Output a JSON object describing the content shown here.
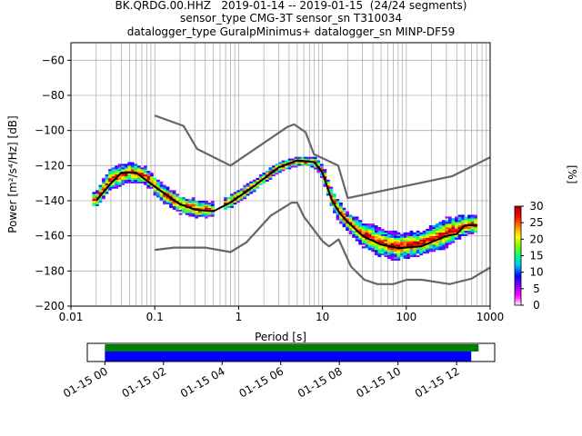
{
  "title_lines": [
    "BK.QRDG.00.HHZ   2019-01-14 -- 2019-01-15  (24/24 segments)",
    "sensor_type CMG-3T sensor_sn T310034",
    "datalogger_type GuralpMinimus+ datalogger_sn MINP-DF59"
  ],
  "chart_data": [
    {
      "type": "heatmap",
      "title": "BK.QRDG.00.HHZ   2019-01-14 -- 2019-01-15  (24/24 segments)",
      "xlabel": "Period [s]",
      "ylabel": "Power [m²/s⁴/Hz] [dB]",
      "xscale": "log",
      "xlim": [
        0.01,
        1000
      ],
      "ylim": [
        -200,
        -50
      ],
      "xticks": [
        0.01,
        0.1,
        1,
        10,
        100,
        1000
      ],
      "xtick_labels": [
        "0.01",
        "0.1",
        "1",
        "10",
        "100",
        "1000"
      ],
      "yticks": [
        -200,
        -180,
        -160,
        -140,
        -120,
        -100,
        -80,
        -60
      ],
      "ytick_labels": [
        "−200",
        "−180",
        "−160",
        "−140",
        "−120",
        "−100",
        "−80",
        "−60"
      ],
      "grid": true,
      "colorbar": {
        "label": "[%]",
        "range": [
          0,
          30
        ],
        "ticks": [
          0,
          5,
          10,
          15,
          20,
          25,
          30
        ],
        "colormap": [
          "#ffffff",
          "#ff00ff",
          "#8000ff",
          "#0000ff",
          "#00c0ff",
          "#00ff80",
          "#80ff00",
          "#ffff00",
          "#ff8000",
          "#ff0000",
          "#a00000"
        ]
      },
      "series": [
        {
          "name": "",
          "role": "mean",
          "color": "#000000",
          "points": [
            [
              0.02,
              -140
            ],
            [
              0.03,
              -130
            ],
            [
              0.04,
              -124
            ],
            [
              0.06,
              -124
            ],
            [
              0.1,
              -132
            ],
            [
              0.2,
              -142
            ],
            [
              0.3,
              -145
            ],
            [
              0.5,
              -146
            ],
            [
              0.8,
              -141
            ],
            [
              1.5,
              -132
            ],
            [
              3,
              -121
            ],
            [
              5,
              -117
            ],
            [
              8,
              -118
            ],
            [
              10,
              -124
            ],
            [
              13,
              -140
            ],
            [
              16,
              -147
            ],
            [
              20,
              -152
            ],
            [
              30,
              -160
            ],
            [
              50,
              -165
            ],
            [
              80,
              -167
            ],
            [
              150,
              -166
            ],
            [
              300,
              -160
            ],
            [
              400,
              -159
            ],
            [
              500,
              -154
            ],
            [
              700,
              -154
            ]
          ]
        },
        {
          "name": "",
          "role": "noise-model-high",
          "color": "#666666",
          "points": [
            [
              0.1,
              -91.5
            ],
            [
              0.22,
              -97.4
            ],
            [
              0.32,
              -110.5
            ],
            [
              0.8,
              -120
            ],
            [
              3.8,
              -98
            ],
            [
              4.6,
              -96.5
            ],
            [
              6.3,
              -101
            ],
            [
              7.9,
              -113.5
            ],
            [
              15.4,
              -120
            ],
            [
              20,
              -138.5
            ],
            [
              354.8,
              -126
            ],
            [
              10000,
              -91.5
            ]
          ]
        },
        {
          "name": "",
          "role": "noise-model-low",
          "color": "#666666",
          "points": [
            [
              0.1,
              -168
            ],
            [
              0.17,
              -166.7
            ],
            [
              0.4,
              -166.7
            ],
            [
              0.8,
              -169.2
            ],
            [
              1.24,
              -163.7
            ],
            [
              2.4,
              -148.6
            ],
            [
              4.3,
              -141.1
            ],
            [
              5,
              -141.1
            ],
            [
              6,
              -149
            ],
            [
              10,
              -163
            ],
            [
              12,
              -166
            ],
            [
              15.6,
              -162
            ],
            [
              21.9,
              -177.5
            ],
            [
              31.6,
              -185
            ],
            [
              45,
              -187.5
            ],
            [
              70,
              -187.5
            ],
            [
              101,
              -185
            ],
            [
              154,
              -185
            ],
            [
              328,
              -187.5
            ],
            [
              600,
              -184.4
            ],
            [
              1000,
              -178
            ]
          ]
        }
      ],
      "density_band": {
        "period_range": [
          0.018,
          700
        ],
        "period_gap": [
          0.5,
          0.65
        ],
        "rows": [
          [
            0.02,
            -144,
            -135
          ],
          [
            0.03,
            -134,
            -121
          ],
          [
            0.05,
            -129,
            -118
          ],
          [
            0.08,
            -131,
            -121
          ],
          [
            0.12,
            -140,
            -130
          ],
          [
            0.2,
            -147,
            -137
          ],
          [
            0.35,
            -150,
            -140
          ],
          [
            0.5,
            -149,
            -141
          ],
          [
            0.8,
            -144,
            -137
          ],
          [
            1.5,
            -135,
            -128
          ],
          [
            3,
            -124,
            -118
          ],
          [
            5,
            -120,
            -115
          ],
          [
            8,
            -121,
            -115
          ],
          [
            10,
            -127,
            -119
          ],
          [
            13,
            -145,
            -133
          ],
          [
            16,
            -152,
            -140
          ],
          [
            20,
            -157,
            -147
          ],
          [
            30,
            -166,
            -151
          ],
          [
            50,
            -172,
            -156
          ],
          [
            80,
            -174,
            -158
          ],
          [
            150,
            -171,
            -157
          ],
          [
            300,
            -167,
            -150
          ],
          [
            500,
            -160,
            -148
          ],
          [
            700,
            -159,
            -148
          ]
        ]
      }
    },
    {
      "type": "timeline",
      "xtick_labels": [
        "01-15 00",
        "01-15 02",
        "01-15 04",
        "01-15 06",
        "01-15 08",
        "01-15 10",
        "01-15 12"
      ],
      "xticks_hours": [
        0,
        2,
        4,
        6,
        8,
        10,
        12
      ],
      "xlim_hours": [
        -0.6,
        13.3
      ],
      "bars": [
        {
          "name": "",
          "color": "#008000",
          "start_hour": 0,
          "end_hour": 12.75
        },
        {
          "name": "",
          "color": "#0000ff",
          "start_hour": 0,
          "end_hour": 12.5
        }
      ]
    }
  ]
}
